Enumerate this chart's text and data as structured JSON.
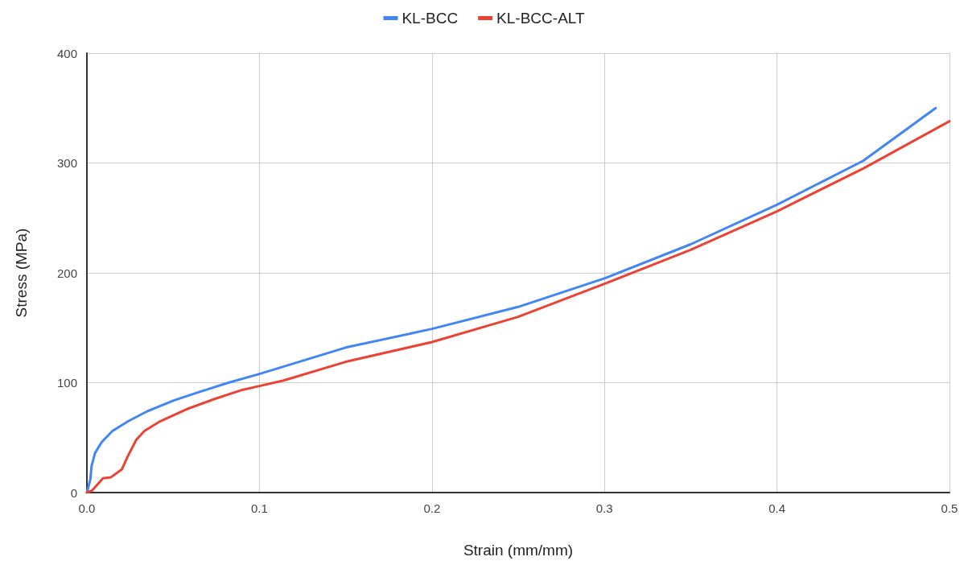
{
  "chart_data": {
    "type": "line",
    "xlabel": "Strain (mm/mm)",
    "ylabel": "Stress (MPa)",
    "xlim": [
      0,
      0.5
    ],
    "xticks": [
      {
        "value": 0,
        "label": "0.0"
      },
      0.1,
      0.2,
      0.3,
      0.4,
      0.5
    ],
    "ylim": [
      0,
      400
    ],
    "yticks": [
      0,
      100,
      200,
      300,
      400
    ],
    "grid": true,
    "legend": "top",
    "marker": "none",
    "line_style": "solid",
    "series": [
      {
        "name": "KL-BCC",
        "color": "#4285f4",
        "x": [
          0,
          0.002,
          0.0027,
          0.0047,
          0.0086,
          0.0148,
          0.024,
          0.035,
          0.0506,
          0.066,
          0.082,
          0.1,
          0.15,
          0.2,
          0.25,
          0.3,
          0.35,
          0.4,
          0.45,
          0.492
        ],
        "values": [
          0,
          12,
          24,
          36,
          46,
          56,
          65,
          74,
          84,
          92,
          100,
          108,
          132,
          149,
          169,
          195,
          226,
          262,
          302,
          350
        ]
      },
      {
        "name": "KL-BCC-ALT",
        "color": "#ea4335",
        "x": [
          0,
          0.0031,
          0.0093,
          0.014,
          0.0202,
          0.024,
          0.0286,
          0.0333,
          0.0426,
          0.058,
          0.0736,
          0.089,
          0.1,
          0.114,
          0.15,
          0.2,
          0.25,
          0.3,
          0.35,
          0.4,
          0.45,
          0.5
        ],
        "values": [
          0,
          2,
          13,
          14,
          21,
          34,
          48,
          56,
          65,
          76,
          85,
          93,
          97,
          102,
          119,
          137,
          160,
          190,
          221,
          256,
          295,
          338
        ]
      }
    ]
  }
}
